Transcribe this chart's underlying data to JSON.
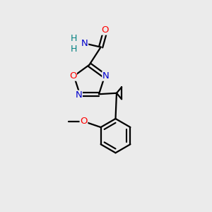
{
  "background_color": "#ebebeb",
  "bond_color": "#000000",
  "atom_colors": {
    "O": "#ff0000",
    "N": "#0000cd",
    "C": "#000000",
    "H": "#008080"
  },
  "figsize": [
    3.0,
    3.0
  ],
  "dpi": 100
}
